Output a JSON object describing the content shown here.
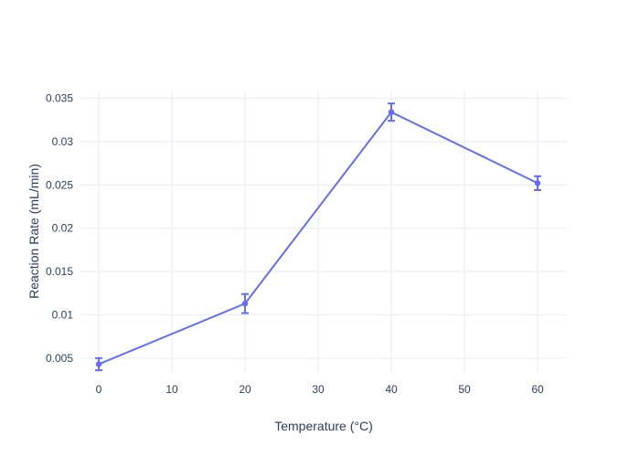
{
  "figure": {
    "background": "#ffffff"
  },
  "chart_data": {
    "type": "line",
    "x": [
      0,
      20,
      40,
      60
    ],
    "y": [
      0.0043,
      0.0113,
      0.0334,
      0.0252
    ],
    "error_y": [
      0.0007,
      0.0011,
      0.001,
      0.0008
    ],
    "title": "",
    "xlabel": "Temperature (°C)",
    "ylabel": "Reaction Rate (mL/min)",
    "x_ticks": {
      "values": [
        0,
        10,
        20,
        30,
        40,
        50,
        60
      ],
      "labels": [
        "0",
        "10",
        "20",
        "30",
        "40",
        "50",
        "60"
      ]
    },
    "y_ticks": {
      "values": [
        0.005,
        0.01,
        0.015,
        0.02,
        0.025,
        0.03,
        0.035
      ],
      "labels": [
        "0.005",
        "0.01",
        "0.015",
        "0.02",
        "0.025",
        "0.03",
        "0.035"
      ]
    },
    "xlim": [
      -2.5,
      64
    ],
    "ylim": [
      0.0034,
      0.0359
    ],
    "grid": true,
    "legend": false,
    "error_bars": true,
    "marker": "circle",
    "colors": {
      "series": "#636efa",
      "grid": "#ebf0f8",
      "text": "#2a3f5f",
      "background": "#ffffff"
    }
  }
}
